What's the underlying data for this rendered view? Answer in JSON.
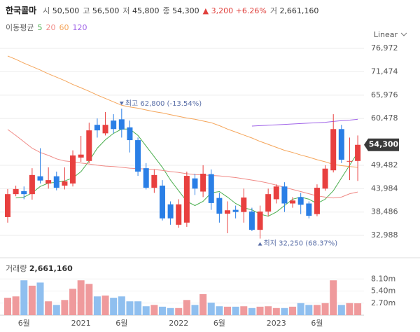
{
  "header": {
    "name": "한국콜마",
    "fields": [
      {
        "label": "시",
        "value": "50,500"
      },
      {
        "label": "고",
        "value": "56,500"
      },
      {
        "label": "저",
        "value": "45,800"
      },
      {
        "label": "종",
        "value": "54,300"
      }
    ],
    "change": "3,200",
    "change_pct": "+6.26%",
    "volume_label": "거",
    "volume_value": "2,661,160"
  },
  "chart_data": {
    "type": "candlestick",
    "scale_label": "Linear",
    "ma_title": "이동평균",
    "categories": [
      null,
      null,
      "6월",
      null,
      null,
      null,
      null,
      null,
      null,
      "2021",
      null,
      null,
      null,
      null,
      "6월",
      null,
      null,
      null,
      null,
      null,
      null,
      "2022",
      null,
      null,
      null,
      null,
      "6월",
      null,
      null,
      null,
      null,
      null,
      null,
      "2023",
      null,
      null,
      null,
      null,
      "6월",
      null,
      null,
      null,
      null,
      null
    ],
    "open": [
      37300,
      42700,
      43400,
      42700,
      46900,
      45200,
      46900,
      44700,
      45200,
      51300,
      50500,
      59000,
      57000,
      60000,
      60300,
      58400,
      55400,
      48800,
      44200,
      44700,
      40300,
      35500,
      36000,
      46400,
      43300,
      47400,
      41800,
      38100,
      39000,
      38500,
      38600,
      34300,
      38600,
      41500,
      44500,
      40500,
      42000,
      40500,
      38000,
      44000,
      48300,
      58000,
      50500,
      50500
    ],
    "high": [
      43900,
      44700,
      44500,
      48800,
      53500,
      49000,
      48000,
      49000,
      53000,
      56400,
      59500,
      60500,
      62000,
      61500,
      62800,
      60000,
      56000,
      50000,
      48500,
      46000,
      41000,
      41500,
      48000,
      47500,
      49500,
      48500,
      43000,
      41000,
      40000,
      44000,
      39500,
      40000,
      44000,
      45000,
      45500,
      42000,
      43000,
      41000,
      45000,
      49500,
      61500,
      59000,
      56000,
      56500
    ],
    "low": [
      36000,
      42200,
      41500,
      41400,
      45200,
      44000,
      43600,
      43800,
      44500,
      50300,
      50000,
      56000,
      56500,
      57000,
      56000,
      52500,
      47000,
      43800,
      43000,
      36500,
      35500,
      34800,
      35000,
      42500,
      42000,
      39000,
      36000,
      33500,
      37000,
      36000,
      34000,
      32250,
      37500,
      40500,
      38500,
      39500,
      38000,
      37000,
      37500,
      43500,
      47800,
      50000,
      46000,
      45800
    ],
    "close": [
      42700,
      43900,
      42700,
      47200,
      45900,
      46000,
      44200,
      45700,
      51800,
      52000,
      57700,
      57700,
      59000,
      58000,
      57900,
      55400,
      48000,
      44200,
      47200,
      37000,
      37000,
      40300,
      47000,
      44000,
      47500,
      40600,
      38100,
      38900,
      38500,
      41900,
      34300,
      38600,
      42700,
      44500,
      40500,
      41200,
      40200,
      37600,
      44200,
      48700,
      58000,
      50800,
      50500,
      54300
    ],
    "ylim": [
      30700,
      79300
    ],
    "yticks": [
      {
        "value": 32988,
        "label": "32,988"
      },
      {
        "value": 38486,
        "label": "38,486"
      },
      {
        "value": 43984,
        "label": "43,984"
      },
      {
        "value": 49482,
        "label": "49,482"
      },
      {
        "value": 60478,
        "label": "60,478"
      },
      {
        "value": 65976,
        "label": "65,976"
      },
      {
        "value": 71474,
        "label": "71,474"
      },
      {
        "value": 76972,
        "label": "76,972"
      }
    ],
    "grid": true,
    "up_color": "#e8403f",
    "down_color": "#2a7fe6",
    "price_tag": {
      "value": 54300,
      "label": "54,300"
    },
    "annotations": [
      {
        "kind": "high",
        "value": 62800,
        "label": "최고 62,800 (-13.54%)"
      },
      {
        "kind": "low",
        "value": 32250,
        "label": "최저 32,250 (68.37%)"
      }
    ],
    "series": [
      {
        "name": "5",
        "color": "#4caf50",
        "values": [
          null,
          41800,
          42000,
          43000,
          44500,
          45300,
          45500,
          45800,
          46500,
          48000,
          50500,
          53500,
          55500,
          57000,
          58000,
          58000,
          56500,
          54000,
          51500,
          49000,
          46000,
          43500,
          41000,
          40000,
          41000,
          43000,
          43300,
          42000,
          40500,
          39500,
          39000,
          38000,
          37500,
          38500,
          40000,
          41500,
          42000,
          41500,
          40500,
          41500,
          43500,
          46500,
          49500,
          52500
        ]
      },
      {
        "name": "20",
        "color": "#f08a86",
        "values": [
          57900,
          56500,
          55000,
          53500,
          52500,
          51800,
          51000,
          50500,
          50300,
          50000,
          49800,
          49500,
          49300,
          49200,
          49000,
          48800,
          48700,
          48600,
          48500,
          48300,
          48000,
          47800,
          47500,
          47300,
          47200,
          47100,
          47000,
          46800,
          46600,
          46300,
          46000,
          45700,
          45300,
          44800,
          44300,
          43800,
          43300,
          42800,
          42300,
          42000,
          41800,
          42000,
          42800,
          43200
        ]
      },
      {
        "name": "60",
        "color": "#f5a55a",
        "values": [
          75200,
          74400,
          73500,
          72700,
          71900,
          71000,
          70200,
          69400,
          68500,
          67700,
          66900,
          66000,
          65200,
          64400,
          63600,
          63200,
          62900,
          62500,
          62100,
          61800,
          61400,
          61000,
          60600,
          60300,
          59900,
          59500,
          58800,
          58000,
          57300,
          56600,
          55900,
          55100,
          54400,
          53700,
          53000,
          52500,
          51900,
          51400,
          50800,
          50300,
          49700,
          49400,
          49200,
          49000
        ]
      },
      {
        "name": "120",
        "color": "#a064e8",
        "values": [
          null,
          null,
          null,
          null,
          null,
          null,
          null,
          null,
          null,
          null,
          null,
          null,
          null,
          null,
          null,
          null,
          null,
          null,
          null,
          null,
          null,
          null,
          null,
          null,
          null,
          null,
          null,
          null,
          null,
          null,
          58700,
          58800,
          58900,
          59000,
          59100,
          59200,
          59300,
          59400,
          59500,
          59600,
          59800,
          60000,
          60100,
          60300
        ]
      }
    ],
    "volume": {
      "title": "거래량",
      "last_label": "2,661,160",
      "up_color": "#ef9a9c",
      "down_color": "#8fbfef",
      "values": [
        3900000,
        4200000,
        7800000,
        6600000,
        7300000,
        3100000,
        2300000,
        3400000,
        5900000,
        7800000,
        7000000,
        4200000,
        4400000,
        3900000,
        4200000,
        3100000,
        3100000,
        2000000,
        2300000,
        1900000,
        1600000,
        1600000,
        3400000,
        2300000,
        4700000,
        2800000,
        2000000,
        1900000,
        1900000,
        2000000,
        1600000,
        1900000,
        2000000,
        1600000,
        1600000,
        1900000,
        2700000,
        2300000,
        2300000,
        2700000,
        7800000,
        2300000,
        2700000,
        2661160
      ],
      "ylim": [
        0,
        9400000
      ],
      "yticks": [
        {
          "value": 2700000,
          "label": "2.70m"
        },
        {
          "value": 5400000,
          "label": "5.40m"
        },
        {
          "value": 8100000,
          "label": "8.10m"
        }
      ]
    }
  }
}
